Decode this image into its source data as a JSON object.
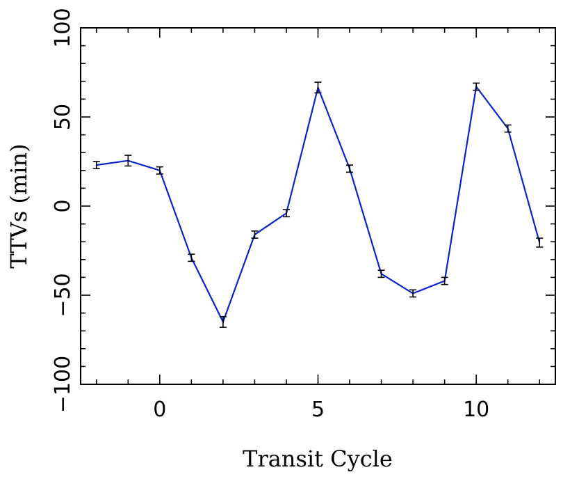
{
  "chart_data": {
    "type": "line",
    "title": "",
    "xlabel": "Transit Cycle",
    "ylabel": "TTVs (min)",
    "xlim": [
      -2.5,
      12.5
    ],
    "ylim": [
      -100,
      100
    ],
    "xticks": [
      0,
      5,
      10
    ],
    "yticks": [
      -100,
      -50,
      0,
      50,
      100
    ],
    "x_minor_step": 1,
    "y_minor_step": 10,
    "grid": false,
    "colors": {
      "line": "#0a24c8",
      "errorbar": "#000000"
    },
    "series": [
      {
        "x": [
          -2,
          -1,
          0,
          1,
          2,
          3,
          4,
          5,
          6,
          7,
          8,
          9,
          10,
          11,
          12
        ],
        "y": [
          23,
          25.5,
          20,
          -29,
          -65,
          -16,
          -4,
          66.5,
          21,
          -38,
          -49,
          -42,
          67,
          43.5,
          -20.5
        ],
        "yerr": [
          2,
          3,
          2,
          2,
          3,
          2,
          2,
          3,
          2,
          2,
          2,
          2,
          2,
          2,
          2.5
        ]
      }
    ]
  }
}
